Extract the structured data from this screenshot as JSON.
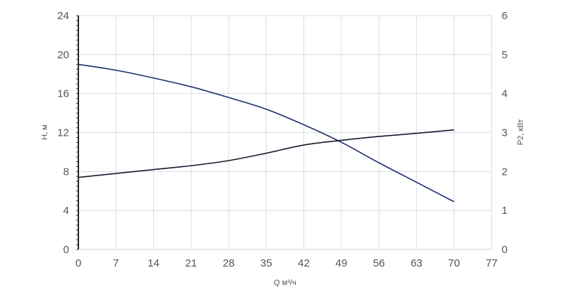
{
  "chart_data": {
    "type": "line",
    "xlabel": "Q м³/ч",
    "ylabel_left": "H, м",
    "ylabel_right": "P2, кВт",
    "xlim": [
      0,
      77
    ],
    "ylim_left": [
      0,
      24
    ],
    "ylim_right": [
      0,
      6
    ],
    "x_ticks": [
      0,
      7,
      14,
      21,
      28,
      35,
      42,
      49,
      56,
      63,
      70,
      77
    ],
    "y_left_ticks": [
      0,
      4,
      8,
      12,
      16,
      20,
      24
    ],
    "y_right_ticks": [
      0,
      1,
      2,
      3,
      4,
      5,
      6
    ],
    "grid": true,
    "series": [
      {
        "axis": "left",
        "color": "#1a2f6b",
        "points": [
          [
            0,
            19.0
          ],
          [
            7,
            18.4
          ],
          [
            14,
            17.6
          ],
          [
            21,
            16.7
          ],
          [
            28,
            15.6
          ],
          [
            35,
            14.4
          ],
          [
            42,
            12.8
          ],
          [
            49,
            11.0
          ],
          [
            56,
            8.9
          ],
          [
            63,
            6.9
          ],
          [
            70,
            4.9
          ]
        ]
      },
      {
        "axis": "right",
        "color": "#1a1a2e",
        "points": [
          [
            0,
            1.85
          ],
          [
            7,
            1.95
          ],
          [
            14,
            2.05
          ],
          [
            21,
            2.15
          ],
          [
            28,
            2.28
          ],
          [
            35,
            2.47
          ],
          [
            42,
            2.68
          ],
          [
            49,
            2.8
          ],
          [
            56,
            2.9
          ],
          [
            63,
            2.98
          ],
          [
            70,
            3.07
          ]
        ]
      }
    ]
  }
}
